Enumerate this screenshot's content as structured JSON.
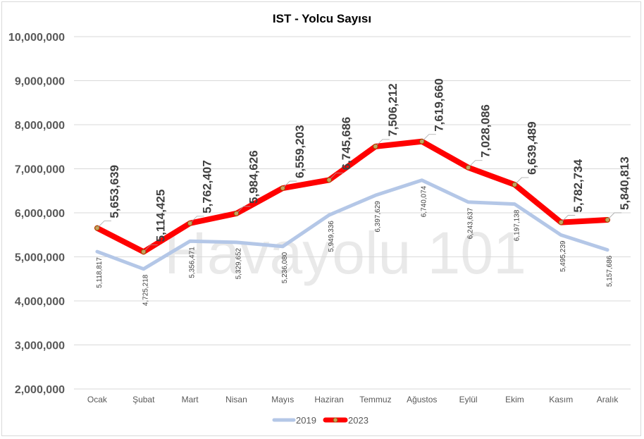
{
  "chart_data": {
    "type": "line",
    "title": "IST - Yolcu Sayısı",
    "watermark": "Havayolu 101",
    "categories": [
      "Ocak",
      "Şubat",
      "Mart",
      "Nisan",
      "Mayıs",
      "Haziran",
      "Temmuz",
      "Ağustos",
      "Eylül",
      "Ekim",
      "Kasım",
      "Aralık"
    ],
    "ylim": [
      2000000,
      10000000
    ],
    "yticks": [
      "2,000,000",
      "3,000,000",
      "4,000,000",
      "5,000,000",
      "6,000,000",
      "7,000,000",
      "8,000,000",
      "9,000,000",
      "10,000,000"
    ],
    "ytick_values": [
      2000000,
      3000000,
      4000000,
      5000000,
      6000000,
      7000000,
      8000000,
      9000000,
      10000000
    ],
    "grid": true,
    "legend_position": "bottom",
    "series": [
      {
        "name": "2019",
        "color": "#b4c7e7",
        "values": [
          5118817,
          4725218,
          5356471,
          5329652,
          5236080,
          5949336,
          6397629,
          6740074,
          6243637,
          6197138,
          5495239,
          5157686
        ],
        "labels": [
          "5,118,817",
          "4,725,218",
          "5,356,471",
          "5,329,652",
          "5,236,080",
          "5,949,336",
          "6,397,629",
          "6,740,074",
          "6,243,637",
          "6,197,138",
          "5,495,239",
          "5,157,686"
        ]
      },
      {
        "name": "2023",
        "color": "#ff0000",
        "marker_color": "#c9a15a",
        "values": [
          5653639,
          5114425,
          5762407,
          5984626,
          6559203,
          6745686,
          7506212,
          7619660,
          7028086,
          6639489,
          5782734,
          5840813
        ],
        "labels": [
          "5,653,639",
          "5,114,425",
          "5,762,407",
          "5,984,626",
          "6,559,203",
          "6,745,686",
          "7,506,212",
          "7,619,660",
          "7,028,086",
          "6,639,489",
          "5,782,734",
          "5,840,813"
        ]
      }
    ]
  }
}
